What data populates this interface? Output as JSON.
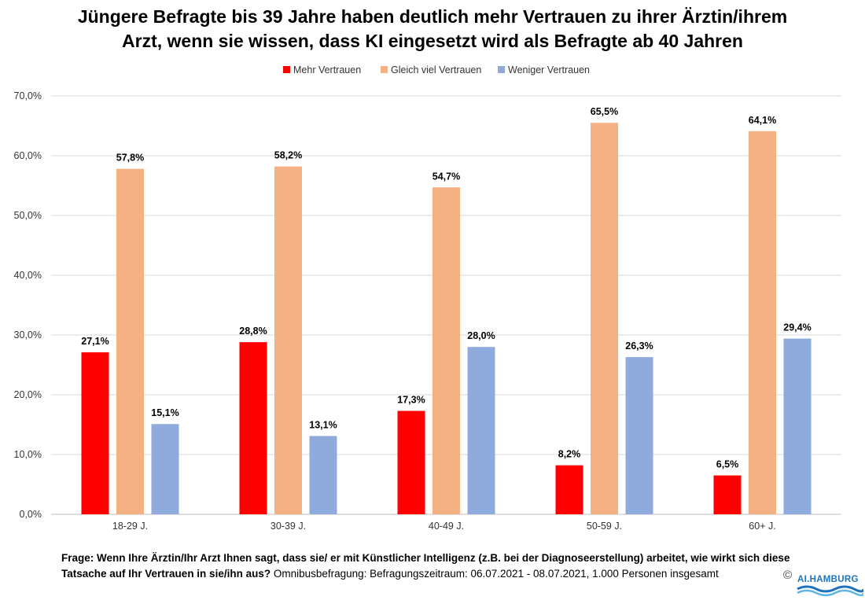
{
  "title_line1": "Jüngere Befragte bis 39 Jahre haben deutlich mehr Vertrauen zu ihrer Ärztin/ihrem",
  "title_line2": "Arzt, wenn sie wissen, dass KI eingesetzt wird als Befragte ab 40 Jahren",
  "chart_data": {
    "type": "bar",
    "title": "Jüngere Befragte bis 39 Jahre haben deutlich mehr Vertrauen zu ihrer Ärztin/ihrem Arzt, wenn sie wissen, dass KI eingesetzt wird als Befragte ab 40 Jahren",
    "categories": [
      "18-29 J.",
      "30-39 J.",
      "40-49 J.",
      "50-59 J.",
      "60+ J."
    ],
    "series": [
      {
        "name": "Mehr Vertrauen",
        "color": "#ff0000",
        "values": [
          27.1,
          28.8,
          17.3,
          8.2,
          6.5
        ],
        "labels": [
          "27,1%",
          "28,8%",
          "17,3%",
          "8,2%",
          "6,5%"
        ]
      },
      {
        "name": "Gleich viel Vertrauen",
        "color": "#f4b183",
        "values": [
          57.8,
          58.2,
          54.7,
          65.5,
          64.1
        ],
        "labels": [
          "57,8%",
          "58,2%",
          "54,7%",
          "65,5%",
          "64,1%"
        ]
      },
      {
        "name": "Weniger Vertrauen",
        "color": "#8faadc",
        "values": [
          15.1,
          13.1,
          28.0,
          26.3,
          29.4
        ],
        "labels": [
          "15,1%",
          "13,1%",
          "28,0%",
          "26,3%",
          "29,4%"
        ]
      }
    ],
    "ylim": [
      0,
      70
    ],
    "yticks": [
      0,
      10,
      20,
      30,
      40,
      50,
      60,
      70
    ],
    "ytick_labels": [
      "0,0%",
      "10,0%",
      "20,0%",
      "30,0%",
      "40,0%",
      "50,0%",
      "60,0%",
      "70,0%"
    ],
    "xlabel": "",
    "ylabel": "",
    "grid": true,
    "legend_position": "top-center"
  },
  "footnote": {
    "question": "Frage: Wenn Ihre Ärztin/Ihr Arzt Ihnen sagt, dass sie/ er mit Künstlicher Intelligenz (z.B. bei der Diagnoseerstellung) arbeitet, wie wirkt sich diese Tatsache auf Ihr Vertrauen in sie/ihn aus?",
    "method": "Omnibusbefragung: Befragungszeitraum: 06.07.2021 - 08.07.2021, 1.000 Personen insgesamt"
  },
  "copyright": "©",
  "logo_text": "AI.HAMBURG",
  "colors": {
    "gridline": "#d9d9d9",
    "axis": "#bfbfbf",
    "text": "#000000"
  }
}
